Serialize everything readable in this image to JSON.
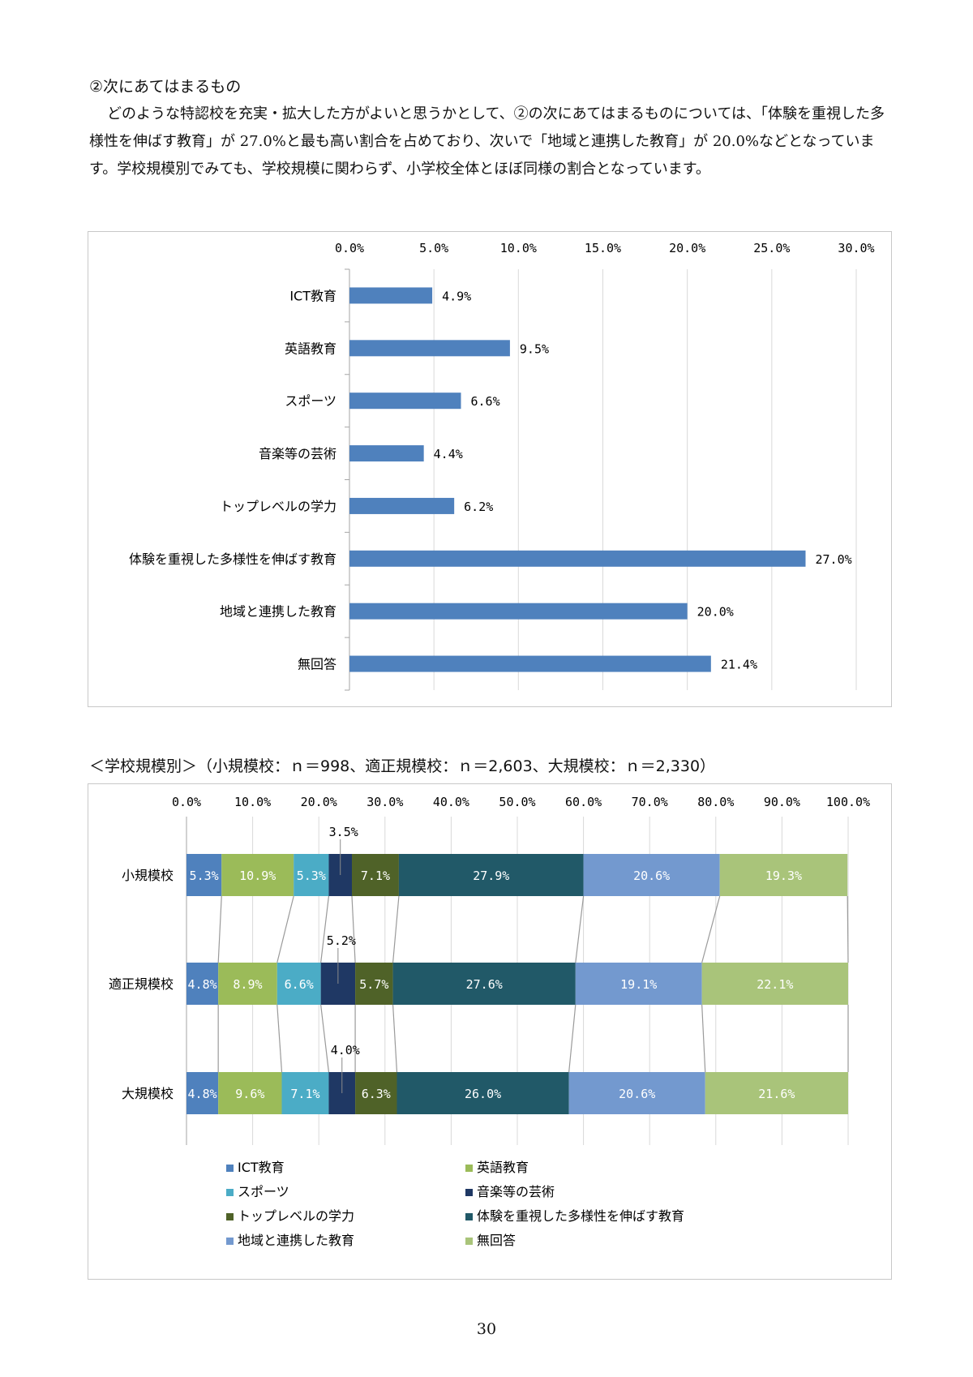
{
  "heading": "②次にあてはまるもの",
  "paragraph": "どのような特認校を充実・拡大した方がよいと思うかとして、②の次にあてはまるものについては、「体験を重視した多様性を伸ばす教育」が 27.0%と最も高い割合を占めており、次いで「地域と連携した教育」が 20.0%などとなっています。学校規模別でみても、学校規模に関わらず、小学校全体とほぼ同様の割合となっています。",
  "subtitle": "＜学校規模別＞（小規模校：ｎ＝998、適正規模校：ｎ＝2,603、大規模校：ｎ＝2,330）",
  "page_number": "30",
  "colors": {
    "bar": "#4f81bd",
    "grid": "#d9d9d9",
    "axis": "#a6a6a6",
    "series": [
      "#4f81bd",
      "#9bbb59",
      "#4bacc6",
      "#1f3864",
      "#4f6228",
      "#215968",
      "#7399cf",
      "#a9c47a"
    ]
  },
  "chart_data": [
    {
      "type": "bar",
      "orientation": "horizontal",
      "categories": [
        "ICT教育",
        "英語教育",
        "スポーツ",
        "音楽等の芸術",
        "トップレベルの学力",
        "体験を重視した多様性を伸ばす教育",
        "地域と連携した教育",
        "無回答"
      ],
      "values": [
        4.9,
        9.5,
        6.6,
        4.4,
        6.2,
        27.0,
        20.0,
        21.4
      ],
      "value_labels": [
        "4.9%",
        "9.5%",
        "6.6%",
        "4.4%",
        "6.2%",
        "27.0%",
        "20.0%",
        "21.4%"
      ],
      "xlim": [
        0,
        30
      ],
      "x_ticks": [
        "0.0%",
        "5.0%",
        "10.0%",
        "15.0%",
        "20.0%",
        "25.0%",
        "30.0%"
      ],
      "axis_position": "top",
      "grid": true
    },
    {
      "type": "bar",
      "orientation": "horizontal",
      "stacked": "percent",
      "categories": [
        "小規模校",
        "適正規模校",
        "大規模校"
      ],
      "series": [
        {
          "name": "ICT教育",
          "values": [
            5.3,
            4.8,
            4.8
          ],
          "labels": [
            "5.3%",
            "4.8%",
            "4.8%"
          ]
        },
        {
          "name": "英語教育",
          "values": [
            10.9,
            8.9,
            9.6
          ],
          "labels": [
            "10.9%",
            "8.9%",
            "9.6%"
          ]
        },
        {
          "name": "スポーツ",
          "values": [
            5.3,
            6.6,
            7.1
          ],
          "labels": [
            "5.3%",
            "6.6%",
            "7.1%"
          ]
        },
        {
          "name": "音楽等の芸術",
          "values": [
            3.5,
            5.2,
            4.0
          ],
          "labels": [
            "3.5%",
            "5.2%",
            "4.0%"
          ]
        },
        {
          "name": "トップレベルの学力",
          "values": [
            7.1,
            5.7,
            6.3
          ],
          "labels": [
            "7.1%",
            "5.7%",
            "6.3%"
          ]
        },
        {
          "name": "体験を重視した多様性を伸ばす教育",
          "values": [
            27.9,
            27.6,
            26.0
          ],
          "labels": [
            "27.9%",
            "27.6%",
            "26.0%"
          ]
        },
        {
          "name": "地域と連携した教育",
          "values": [
            20.6,
            19.1,
            20.6
          ],
          "labels": [
            "20.6%",
            "19.1%",
            "20.6%"
          ]
        },
        {
          "name": "無回答",
          "values": [
            19.3,
            22.1,
            21.6
          ],
          "labels": [
            "19.3%",
            "22.1%",
            "21.6%"
          ]
        }
      ],
      "xlim": [
        0,
        100
      ],
      "x_ticks": [
        "0.0%",
        "10.0%",
        "20.0%",
        "30.0%",
        "40.0%",
        "50.0%",
        "60.0%",
        "70.0%",
        "80.0%",
        "90.0%",
        "100.0%"
      ],
      "axis_position": "top",
      "legend": "bottom",
      "series_lines": true,
      "grid": true
    }
  ]
}
